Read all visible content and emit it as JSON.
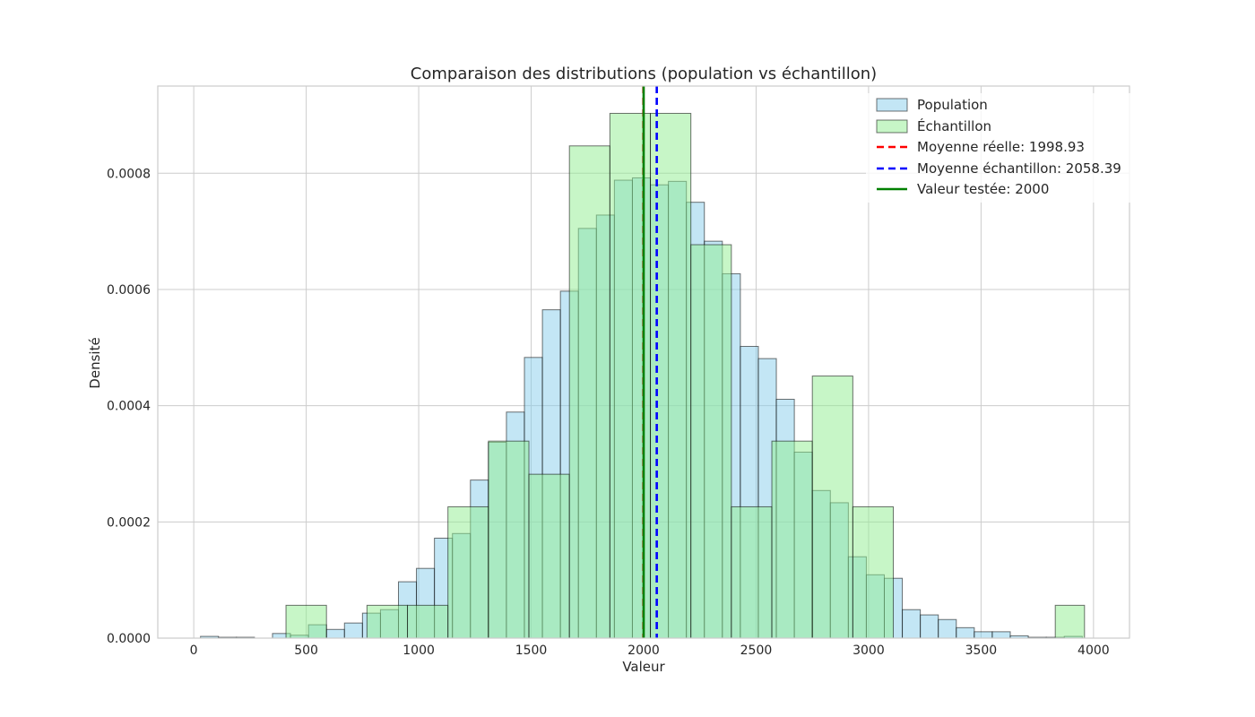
{
  "chart_data": {
    "type": "histogram",
    "title": "Comparaison des distributions (population vs échantillon)",
    "xlabel": "Valeur",
    "ylabel": "Densité",
    "xlim": [
      -160,
      4160
    ],
    "ylim": [
      0,
      0.00095
    ],
    "x_ticks": [
      0,
      500,
      1000,
      1500,
      2000,
      2500,
      3000,
      3500,
      4000
    ],
    "x_tick_labels": [
      "0",
      "500",
      "1000",
      "1500",
      "2000",
      "2500",
      "3000",
      "3500",
      "4000"
    ],
    "y_ticks": [
      0,
      0.0002,
      0.0004,
      0.0006,
      0.0008
    ],
    "y_tick_labels": [
      "0.0000",
      "0.0002",
      "0.0004",
      "0.0006",
      "0.0008"
    ],
    "grid": true,
    "legend_position": "top-right",
    "colors": {
      "population": "#87ceeb",
      "echantillon": "#90ee90",
      "moyenne_reelle": "#ff0000",
      "moyenne_echantillon": "#0000ff",
      "valeur_testee": "#008000"
    },
    "series": [
      {
        "name": "Population",
        "kind": "hist",
        "bin_edges": [
          30,
          110,
          190,
          270,
          350,
          430,
          510,
          590,
          670,
          750,
          830,
          910,
          990,
          1070,
          1150,
          1230,
          1310,
          1390,
          1470,
          1550,
          1630,
          1710,
          1790,
          1870,
          1950,
          2030,
          2110,
          2190,
          2270,
          2350,
          2430,
          2510,
          2590,
          2670,
          2750,
          2830,
          2910,
          2990,
          3070,
          3150,
          3230,
          3310,
          3390,
          3470,
          3550,
          3630,
          3710,
          3790,
          3870,
          3950
        ],
        "values": [
          3e-06,
          1.5e-06,
          1.5e-06,
          0,
          8e-06,
          5e-06,
          2.3e-05,
          1.5e-05,
          2.6e-05,
          4.3e-05,
          4.9e-05,
          9.7e-05,
          0.00012,
          0.000172,
          0.00018,
          0.000272,
          0.000337,
          0.000389,
          0.000483,
          0.000565,
          0.000597,
          0.000705,
          0.000728,
          0.000788,
          0.000792,
          0.00078,
          0.000786,
          0.00075,
          0.000683,
          0.000627,
          0.000502,
          0.000481,
          0.000411,
          0.00032,
          0.000254,
          0.000233,
          0.00014,
          0.000109,
          0.000103,
          4.9e-05,
          4e-05,
          3.2e-05,
          1.8e-05,
          1.1e-05,
          1.1e-05,
          4e-06,
          1.5e-06,
          1.5e-06,
          3e-06
        ]
      },
      {
        "name": "Échantillon",
        "kind": "hist",
        "bin_edges": [
          410,
          590,
          770,
          950,
          1130,
          1310,
          1490,
          1670,
          1850,
          2030,
          2210,
          2390,
          2570,
          2750,
          2930,
          3110,
          3290,
          3470,
          3650,
          3830,
          3960
        ],
        "values": [
          5.65e-05,
          0,
          5.65e-05,
          5.65e-05,
          0.000226,
          0.000339,
          0.000282,
          0.000847,
          0.000903,
          0.000903,
          0.000677,
          0.000226,
          0.000339,
          0.000451,
          0.000226,
          0,
          0,
          0,
          0,
          5.65e-05
        ]
      },
      {
        "name": "Moyenne réelle: 1998.93",
        "kind": "vline",
        "x": 1998.93,
        "style": "dashed"
      },
      {
        "name": "Moyenne échantillon: 2058.39",
        "kind": "vline",
        "x": 2058.39,
        "style": "dashed"
      },
      {
        "name": "Valeur testée: 2000",
        "kind": "vline",
        "x": 2000,
        "style": "solid"
      }
    ]
  }
}
